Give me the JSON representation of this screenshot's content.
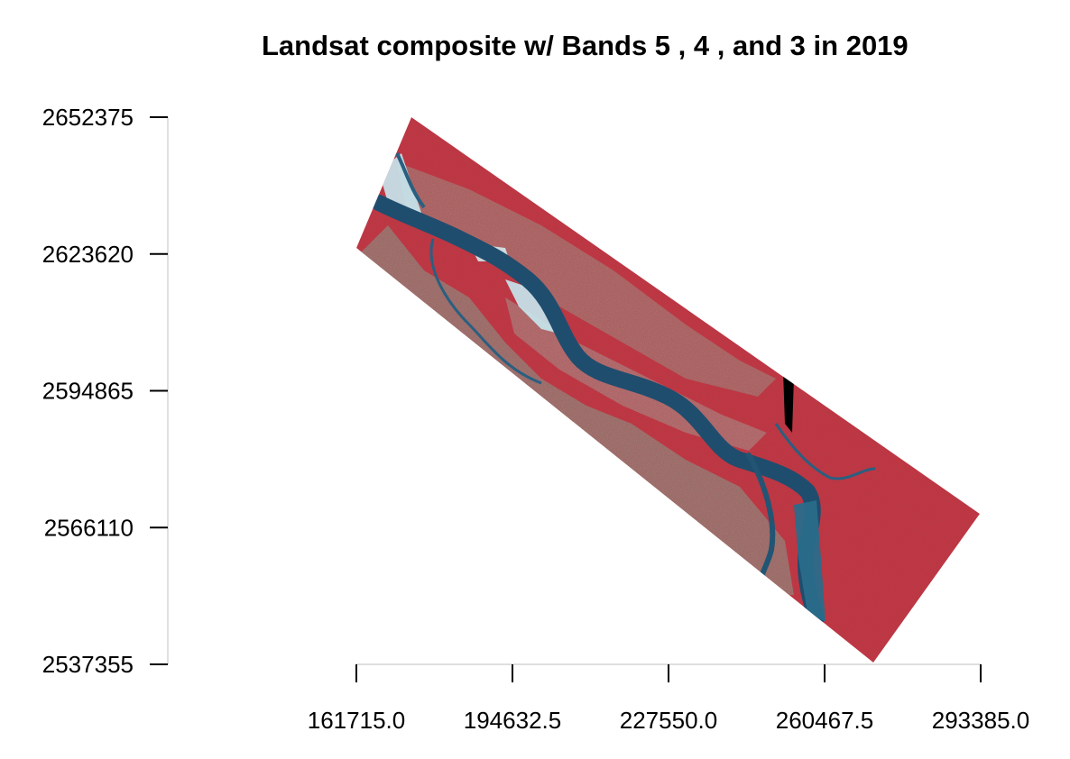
{
  "title": "Landsat composite w/ Bands 5 , 4 , and 3 in 2019",
  "map": {
    "type": "raster-false-color-composite",
    "bands": [
      "5",
      "4",
      "3"
    ],
    "year": "2019",
    "x_axis": {
      "ticks": [
        161715.0,
        194632.5,
        227550.0,
        260467.5,
        293385.0
      ],
      "tick_labels": [
        "161715.0",
        "194632.5",
        "227550.0",
        "260467.5",
        "293385.0"
      ]
    },
    "y_axis": {
      "ticks": [
        2652375,
        2623620,
        2594865,
        2566110,
        2537355
      ],
      "tick_labels": [
        "2652375",
        "2623620",
        "2594865",
        "2566110",
        "2537355"
      ]
    },
    "colors": {
      "vegetation": "#c8323f",
      "water": "#1f4d6e",
      "sand_bars": "#bfe6ee",
      "mixed_land": "#8a9a86",
      "nodata": "#000000"
    }
  }
}
